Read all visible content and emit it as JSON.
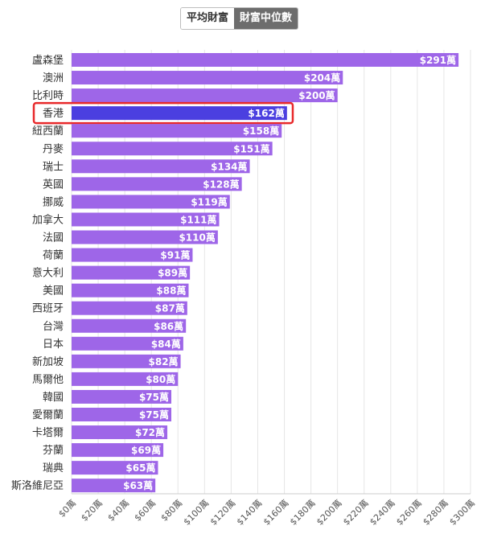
{
  "toggle": {
    "average_label": "平均財富",
    "median_label": "財富中位數",
    "active": "median"
  },
  "chart_data": {
    "type": "bar",
    "orientation": "horizontal",
    "categories": [
      "盧森堡",
      "澳洲",
      "比利時",
      "香港",
      "紐西蘭",
      "丹麥",
      "瑞士",
      "英國",
      "挪威",
      "加拿大",
      "法國",
      "荷蘭",
      "意大利",
      "美國",
      "西班牙",
      "台灣",
      "日本",
      "新加坡",
      "馬爾他",
      "韓國",
      "愛爾蘭",
      "卡塔爾",
      "芬蘭",
      "瑞典",
      "斯洛維尼亞"
    ],
    "values": [
      291,
      204,
      200,
      162,
      158,
      151,
      134,
      128,
      119,
      111,
      110,
      91,
      89,
      88,
      87,
      86,
      84,
      82,
      80,
      75,
      75,
      72,
      69,
      65,
      63
    ],
    "value_labels": [
      "$291萬",
      "$204萬",
      "$200萬",
      "$162萬",
      "$158萬",
      "$151萬",
      "$134萬",
      "$128萬",
      "$119萬",
      "$111萬",
      "$110萬",
      "$91萬",
      "$89萬",
      "$88萬",
      "$87萬",
      "$86萬",
      "$84萬",
      "$82萬",
      "$80萬",
      "$75萬",
      "$75萬",
      "$72萬",
      "$69萬",
      "$65萬",
      "$63萬"
    ],
    "x_ticks": [
      "$0萬",
      "$20萬",
      "$40萬",
      "$60萬",
      "$80萬",
      "$100萬",
      "$120萬",
      "$140萬",
      "$160萬",
      "$180萬",
      "$200萬",
      "$220萬",
      "$240萬",
      "$260萬",
      "$280萬",
      "$300萬"
    ],
    "xlim": [
      0,
      300
    ],
    "highlight": "香港",
    "colors": {
      "bar": "#9e66e8",
      "highlight_bar": "#4b3fe0",
      "highlight_box": "#e8292b",
      "grid": "#e6e6e6"
    },
    "grid": true,
    "title": "",
    "xlabel": "",
    "ylabel": ""
  }
}
